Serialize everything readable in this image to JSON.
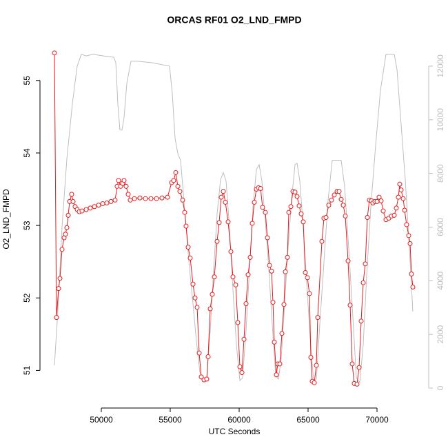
{
  "chart_data": {
    "type": "line",
    "title": "ORCAS RF01 O2_LND_FMPD",
    "xlabel": "UTC Seconds",
    "ylabel": "O2_LND_FMPD",
    "xlim": [
      45650,
      73650
    ],
    "ylim": [
      50.5,
      55.54
    ],
    "y2lim": [
      -692,
      12923
    ],
    "xticks": [
      50000,
      55000,
      60000,
      65000,
      70000
    ],
    "yticks": [
      51,
      52,
      53,
      54,
      55
    ],
    "y2ticks": [
      0,
      2000,
      4000,
      6000,
      8000,
      10000,
      12000
    ],
    "series": [
      {
        "color": "#e41a1c",
        "axis": "y",
        "markers": true,
        "x": [
          46600,
          46750,
          46900,
          47000,
          47150,
          47300,
          47400,
          47500,
          47600,
          47700,
          47850,
          47950,
          48100,
          48250,
          48400,
          48600,
          48900,
          49200,
          49500,
          49800,
          50100,
          50400,
          50700,
          51000,
          51150,
          51250,
          51400,
          51550,
          51650,
          51800,
          51950,
          52100,
          52400,
          52800,
          53200,
          53600,
          54000,
          54400,
          54800,
          55100,
          55250,
          55400,
          55550,
          55700,
          55900,
          56050,
          56150,
          56300,
          56450,
          56650,
          56800,
          56950,
          57100,
          57250,
          57450,
          57650,
          57750,
          57900,
          58050,
          58200,
          58400,
          58550,
          58700,
          58850,
          59000,
          59200,
          59400,
          59550,
          59750,
          59900,
          60050,
          60200,
          60350,
          60500,
          60650,
          60800,
          60950,
          61100,
          61250,
          61400,
          61550,
          61700,
          61900,
          62050,
          62200,
          62350,
          62450,
          62550,
          62700,
          62800,
          62950,
          63100,
          63250,
          63350,
          63500,
          63600,
          63750,
          63900,
          64050,
          64200,
          64350,
          64500,
          64650,
          64800,
          64950,
          65100,
          65200,
          65300,
          65450,
          65600,
          65700,
          66000,
          66150,
          66300,
          66500,
          66700,
          66900,
          67100,
          67250,
          67400,
          67550,
          67700,
          67900,
          68050,
          68200,
          68350,
          68550,
          68700,
          68850,
          69000,
          69150,
          69300,
          69450,
          69600,
          69700,
          69850,
          70000,
          70150,
          70300,
          70450,
          70650,
          70850,
          71050,
          71250,
          71400,
          71550,
          71650,
          71750,
          71900,
          72000,
          72150,
          72300,
          72400,
          72500,
          72600
        ],
        "values": [
          55.38,
          51.73,
          52.13,
          52.27,
          52.67,
          52.83,
          52.88,
          52.97,
          53.14,
          53.33,
          53.43,
          53.33,
          53.26,
          53.22,
          53.19,
          53.2,
          53.22,
          53.24,
          53.26,
          53.28,
          53.3,
          53.31,
          53.33,
          53.35,
          53.54,
          53.62,
          53.54,
          53.58,
          53.62,
          53.54,
          53.43,
          53.35,
          53.37,
          53.38,
          53.37,
          53.37,
          53.37,
          53.38,
          53.39,
          53.59,
          53.62,
          53.73,
          53.54,
          53.47,
          53.35,
          53.18,
          52.99,
          52.7,
          52.55,
          52.19,
          52.0,
          51.87,
          51.24,
          50.91,
          50.87,
          50.88,
          51.19,
          51.85,
          52.05,
          52.29,
          52.78,
          53.04,
          53.39,
          53.47,
          53.32,
          53.05,
          52.64,
          52.29,
          52.18,
          51.66,
          51.05,
          50.97,
          51.43,
          51.92,
          52.32,
          52.56,
          53.03,
          53.32,
          53.5,
          53.52,
          53.51,
          53.25,
          53.18,
          52.83,
          52.45,
          52.37,
          51.94,
          51.39,
          50.94,
          51.09,
          51.09,
          51.51,
          51.91,
          52.36,
          52.56,
          53.18,
          53.26,
          53.47,
          53.46,
          53.4,
          53.27,
          53.16,
          53.05,
          52.35,
          52.28,
          52.06,
          51.18,
          50.85,
          50.83,
          51.07,
          51.73,
          52.78,
          53.1,
          53.11,
          53.28,
          53.35,
          53.42,
          53.47,
          53.47,
          53.36,
          53.28,
          53.13,
          52.51,
          51.9,
          51.09,
          50.82,
          50.81,
          51.04,
          51.68,
          52.21,
          52.47,
          53.11,
          53.35,
          53.34,
          53.31,
          53.33,
          53.33,
          53.39,
          53.34,
          53.2,
          53.08,
          53.1,
          53.13,
          53.14,
          53.24,
          53.39,
          53.57,
          53.49,
          53.37,
          53.21,
          53.01,
          52.86,
          52.75,
          52.33,
          52.15
        ]
      },
      {
        "color": "#bebebe",
        "axis": "y2",
        "markers": false,
        "x": [
          46600,
          46850,
          47150,
          47500,
          47900,
          48250,
          48550,
          48900,
          49400,
          50150,
          50900,
          51050,
          51200,
          51350,
          51500,
          51650,
          51850,
          52150,
          52650,
          53650,
          54950,
          55150,
          55350,
          55550,
          55750,
          55950,
          56150,
          56400,
          56650,
          56900,
          57150,
          57400,
          57650,
          57900,
          58150,
          58400,
          58650,
          58850,
          59050,
          59300,
          59550,
          59800,
          60050,
          60250,
          60500,
          60750,
          61000,
          61250,
          61450,
          61650,
          61900,
          62150,
          62400,
          62650,
          62850,
          63050,
          63300,
          63550,
          63800,
          64050,
          64200,
          64400,
          64650,
          64900,
          65150,
          65400,
          65600,
          65850,
          66150,
          66450,
          66750,
          67400,
          67650,
          67950,
          68250,
          68500,
          68750,
          69000,
          69250,
          69550,
          69900,
          70250,
          70650,
          71250,
          71450,
          71750,
          72050,
          72350,
          72600
        ],
        "values": [
          850,
          2900,
          6000,
          8540,
          10600,
          12000,
          12440,
          12380,
          12440,
          12380,
          12330,
          12130,
          10590,
          9620,
          9620,
          10080,
          11360,
          12180,
          12180,
          12130,
          12000,
          10970,
          9310,
          8740,
          8490,
          7260,
          5970,
          4440,
          3150,
          1740,
          590,
          280,
          380,
          2130,
          4440,
          6490,
          7770,
          8030,
          7720,
          5970,
          3670,
          1620,
          280,
          380,
          2130,
          4440,
          6740,
          8150,
          8330,
          7720,
          6230,
          4440,
          2380,
          460,
          330,
          1100,
          3150,
          5210,
          7000,
          8330,
          8380,
          7720,
          5970,
          3920,
          1870,
          280,
          330,
          2380,
          4690,
          7000,
          8490,
          8490,
          7510,
          5210,
          2640,
          380,
          210,
          1620,
          4180,
          6740,
          9050,
          11100,
          12440,
          12440,
          11870,
          9820,
          7770,
          5210,
          2850
        ]
      }
    ]
  }
}
